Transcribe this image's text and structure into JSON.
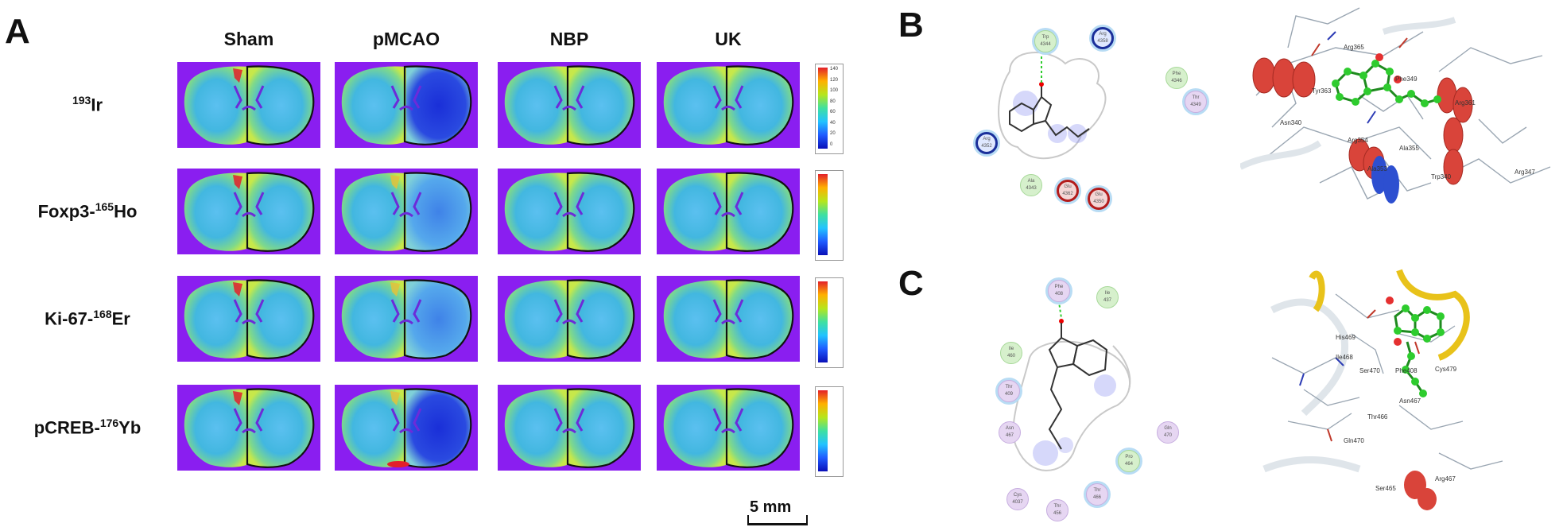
{
  "panels": {
    "a": "A",
    "b": "B",
    "c": "C"
  },
  "columns": [
    "Sham",
    "pMCAO",
    "NBP",
    "UK"
  ],
  "rows": [
    {
      "sup": "193",
      "pre": "",
      "post": "Ir"
    },
    {
      "sup": "165",
      "pre": "Foxp3-",
      "post": "Ho"
    },
    {
      "sup": "168",
      "pre": "Ki-67-",
      "post": "Er"
    },
    {
      "sup": "176",
      "pre": "pCREB-",
      "post": "Yb"
    }
  ],
  "scale_bar": "5 mm",
  "colorbar_ticks": [
    "140",
    "120",
    "100",
    "80",
    "60",
    "40",
    "20",
    "0"
  ],
  "colors": {
    "background": "#8a1ef0",
    "section_base": "#3d9be8",
    "hot": "#e3202a",
    "ligand": "#2ecc2e",
    "helix_red": "#d9443a",
    "helix_yellow": "#e8c21a"
  },
  "panel_b_residues": [
    {
      "name": "Trp",
      "num": "4344",
      "kind": "green"
    },
    {
      "name": "Arg",
      "num": "4358",
      "kind": "blue"
    },
    {
      "name": "Phe",
      "num": "4346",
      "kind": "green"
    },
    {
      "name": "Thr",
      "num": "4349",
      "kind": "purple"
    },
    {
      "name": "Arg",
      "num": "4352",
      "kind": "blue"
    },
    {
      "name": "Ala",
      "num": "4343",
      "kind": "green"
    },
    {
      "name": "Glu",
      "num": "4362",
      "kind": "red"
    },
    {
      "name": "Glu",
      "num": "4350",
      "kind": "red"
    }
  ],
  "panel_c_residues": [
    {
      "name": "Phe",
      "num": "408",
      "kind": "purple"
    },
    {
      "name": "Ile",
      "num": "437",
      "kind": "green"
    },
    {
      "name": "Ile",
      "num": "460",
      "kind": "green"
    },
    {
      "name": "Thr",
      "num": "409",
      "kind": "purple"
    },
    {
      "name": "Asn",
      "num": "467",
      "kind": "purple"
    },
    {
      "name": "Gln",
      "num": "470",
      "kind": "purple"
    },
    {
      "name": "Pro",
      "num": "464",
      "kind": "green"
    },
    {
      "name": "Cys",
      "num": "4037",
      "kind": "purple"
    },
    {
      "name": "Thr",
      "num": "456",
      "kind": "purple"
    },
    {
      "name": "Thr",
      "num": "466",
      "kind": "purple"
    }
  ],
  "panel_b_3d_labels": [
    "Arg365",
    "Phe349",
    "Arg361",
    "Tyr363",
    "Arg354",
    "Asn340",
    "Ala353",
    "Arg347",
    "Trp340",
    "Ala355"
  ],
  "panel_c_3d_labels": [
    "His469",
    "Ile468",
    "Ser470",
    "Phe408",
    "Cys479",
    "Asn467",
    "Thr466",
    "Gln470",
    "Ser465",
    "Arg467"
  ]
}
